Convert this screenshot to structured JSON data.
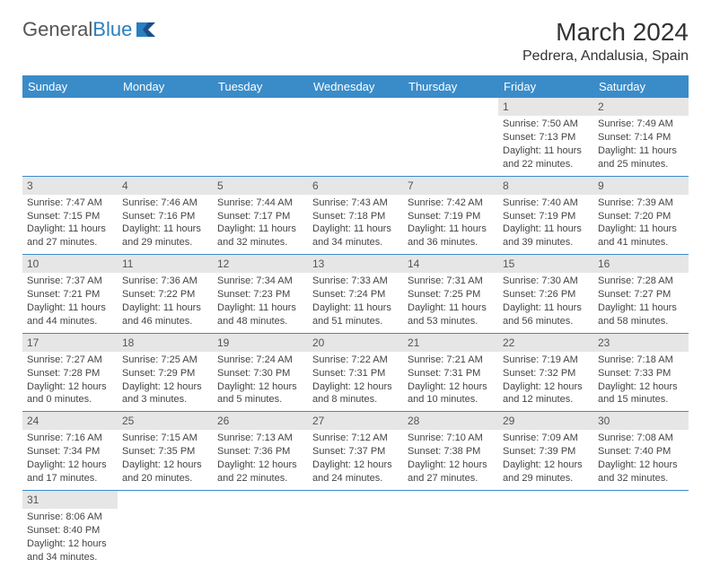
{
  "logo": {
    "brand_a": "General",
    "brand_b": "Blue"
  },
  "title": "March 2024",
  "location": "Pedrera, Andalusia, Spain",
  "colors": {
    "header_bg": "#3a8cc9",
    "header_text": "#ffffff",
    "daynum_bg": "#e6e6e6",
    "border": "#3a8cc9",
    "text": "#444444",
    "logo_blue": "#2a7fbf"
  },
  "weekdays": [
    "Sunday",
    "Monday",
    "Tuesday",
    "Wednesday",
    "Thursday",
    "Friday",
    "Saturday"
  ],
  "weeks": [
    [
      null,
      null,
      null,
      null,
      null,
      {
        "n": "1",
        "sr": "Sunrise: 7:50 AM",
        "ss": "Sunset: 7:13 PM",
        "d1": "Daylight: 11 hours",
        "d2": "and 22 minutes."
      },
      {
        "n": "2",
        "sr": "Sunrise: 7:49 AM",
        "ss": "Sunset: 7:14 PM",
        "d1": "Daylight: 11 hours",
        "d2": "and 25 minutes."
      }
    ],
    [
      {
        "n": "3",
        "sr": "Sunrise: 7:47 AM",
        "ss": "Sunset: 7:15 PM",
        "d1": "Daylight: 11 hours",
        "d2": "and 27 minutes."
      },
      {
        "n": "4",
        "sr": "Sunrise: 7:46 AM",
        "ss": "Sunset: 7:16 PM",
        "d1": "Daylight: 11 hours",
        "d2": "and 29 minutes."
      },
      {
        "n": "5",
        "sr": "Sunrise: 7:44 AM",
        "ss": "Sunset: 7:17 PM",
        "d1": "Daylight: 11 hours",
        "d2": "and 32 minutes."
      },
      {
        "n": "6",
        "sr": "Sunrise: 7:43 AM",
        "ss": "Sunset: 7:18 PM",
        "d1": "Daylight: 11 hours",
        "d2": "and 34 minutes."
      },
      {
        "n": "7",
        "sr": "Sunrise: 7:42 AM",
        "ss": "Sunset: 7:19 PM",
        "d1": "Daylight: 11 hours",
        "d2": "and 36 minutes."
      },
      {
        "n": "8",
        "sr": "Sunrise: 7:40 AM",
        "ss": "Sunset: 7:19 PM",
        "d1": "Daylight: 11 hours",
        "d2": "and 39 minutes."
      },
      {
        "n": "9",
        "sr": "Sunrise: 7:39 AM",
        "ss": "Sunset: 7:20 PM",
        "d1": "Daylight: 11 hours",
        "d2": "and 41 minutes."
      }
    ],
    [
      {
        "n": "10",
        "sr": "Sunrise: 7:37 AM",
        "ss": "Sunset: 7:21 PM",
        "d1": "Daylight: 11 hours",
        "d2": "and 44 minutes."
      },
      {
        "n": "11",
        "sr": "Sunrise: 7:36 AM",
        "ss": "Sunset: 7:22 PM",
        "d1": "Daylight: 11 hours",
        "d2": "and 46 minutes."
      },
      {
        "n": "12",
        "sr": "Sunrise: 7:34 AM",
        "ss": "Sunset: 7:23 PM",
        "d1": "Daylight: 11 hours",
        "d2": "and 48 minutes."
      },
      {
        "n": "13",
        "sr": "Sunrise: 7:33 AM",
        "ss": "Sunset: 7:24 PM",
        "d1": "Daylight: 11 hours",
        "d2": "and 51 minutes."
      },
      {
        "n": "14",
        "sr": "Sunrise: 7:31 AM",
        "ss": "Sunset: 7:25 PM",
        "d1": "Daylight: 11 hours",
        "d2": "and 53 minutes."
      },
      {
        "n": "15",
        "sr": "Sunrise: 7:30 AM",
        "ss": "Sunset: 7:26 PM",
        "d1": "Daylight: 11 hours",
        "d2": "and 56 minutes."
      },
      {
        "n": "16",
        "sr": "Sunrise: 7:28 AM",
        "ss": "Sunset: 7:27 PM",
        "d1": "Daylight: 11 hours",
        "d2": "and 58 minutes."
      }
    ],
    [
      {
        "n": "17",
        "sr": "Sunrise: 7:27 AM",
        "ss": "Sunset: 7:28 PM",
        "d1": "Daylight: 12 hours",
        "d2": "and 0 minutes."
      },
      {
        "n": "18",
        "sr": "Sunrise: 7:25 AM",
        "ss": "Sunset: 7:29 PM",
        "d1": "Daylight: 12 hours",
        "d2": "and 3 minutes."
      },
      {
        "n": "19",
        "sr": "Sunrise: 7:24 AM",
        "ss": "Sunset: 7:30 PM",
        "d1": "Daylight: 12 hours",
        "d2": "and 5 minutes."
      },
      {
        "n": "20",
        "sr": "Sunrise: 7:22 AM",
        "ss": "Sunset: 7:31 PM",
        "d1": "Daylight: 12 hours",
        "d2": "and 8 minutes."
      },
      {
        "n": "21",
        "sr": "Sunrise: 7:21 AM",
        "ss": "Sunset: 7:31 PM",
        "d1": "Daylight: 12 hours",
        "d2": "and 10 minutes."
      },
      {
        "n": "22",
        "sr": "Sunrise: 7:19 AM",
        "ss": "Sunset: 7:32 PM",
        "d1": "Daylight: 12 hours",
        "d2": "and 12 minutes."
      },
      {
        "n": "23",
        "sr": "Sunrise: 7:18 AM",
        "ss": "Sunset: 7:33 PM",
        "d1": "Daylight: 12 hours",
        "d2": "and 15 minutes."
      }
    ],
    [
      {
        "n": "24",
        "sr": "Sunrise: 7:16 AM",
        "ss": "Sunset: 7:34 PM",
        "d1": "Daylight: 12 hours",
        "d2": "and 17 minutes."
      },
      {
        "n": "25",
        "sr": "Sunrise: 7:15 AM",
        "ss": "Sunset: 7:35 PM",
        "d1": "Daylight: 12 hours",
        "d2": "and 20 minutes."
      },
      {
        "n": "26",
        "sr": "Sunrise: 7:13 AM",
        "ss": "Sunset: 7:36 PM",
        "d1": "Daylight: 12 hours",
        "d2": "and 22 minutes."
      },
      {
        "n": "27",
        "sr": "Sunrise: 7:12 AM",
        "ss": "Sunset: 7:37 PM",
        "d1": "Daylight: 12 hours",
        "d2": "and 24 minutes."
      },
      {
        "n": "28",
        "sr": "Sunrise: 7:10 AM",
        "ss": "Sunset: 7:38 PM",
        "d1": "Daylight: 12 hours",
        "d2": "and 27 minutes."
      },
      {
        "n": "29",
        "sr": "Sunrise: 7:09 AM",
        "ss": "Sunset: 7:39 PM",
        "d1": "Daylight: 12 hours",
        "d2": "and 29 minutes."
      },
      {
        "n": "30",
        "sr": "Sunrise: 7:08 AM",
        "ss": "Sunset: 7:40 PM",
        "d1": "Daylight: 12 hours",
        "d2": "and 32 minutes."
      }
    ],
    [
      {
        "n": "31",
        "sr": "Sunrise: 8:06 AM",
        "ss": "Sunset: 8:40 PM",
        "d1": "Daylight: 12 hours",
        "d2": "and 34 minutes."
      },
      null,
      null,
      null,
      null,
      null,
      null
    ]
  ]
}
